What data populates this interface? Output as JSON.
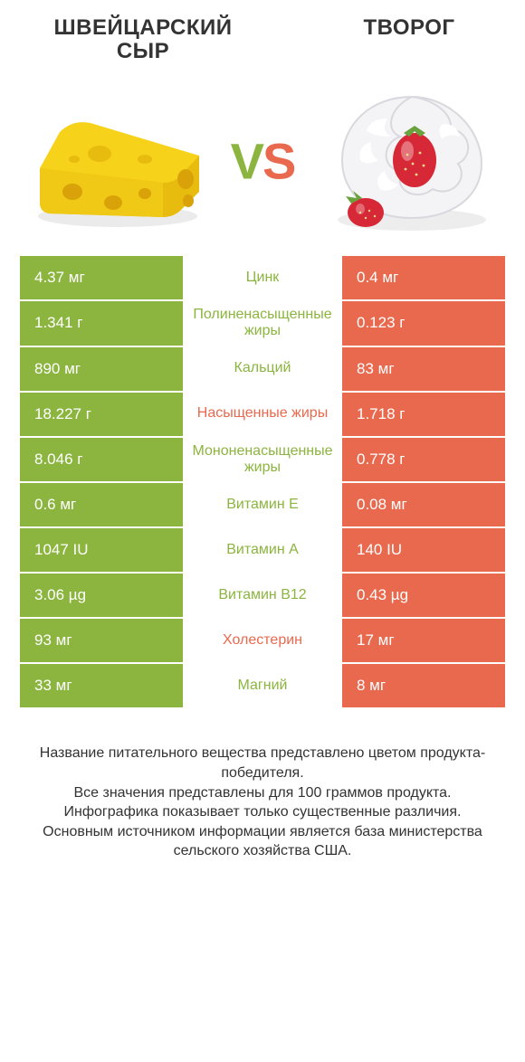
{
  "colors": {
    "left_bar": "#8bb53f",
    "right_bar": "#e9694e",
    "label_green": "#8bb53f",
    "label_red": "#e9694e",
    "cheese_body": "#f6d21a",
    "cheese_side": "#e8bb0f",
    "cheese_hole": "#d8a208",
    "bowl_fill": "#f4f4f6",
    "bowl_stroke": "#d8d8de",
    "strawberry": "#d62836",
    "strawberry_leaf": "#6aa23e"
  },
  "header": {
    "left_title": "ШВЕЙЦАРСКИЙ СЫР",
    "right_title": "ТВОРОГ",
    "vs": "VS"
  },
  "rows": [
    {
      "left": "4.37 мг",
      "label": "Цинк",
      "right": "0.4 мг",
      "label_side": "left"
    },
    {
      "left": "1.341 г",
      "label": "Полиненасыщенные жиры",
      "right": "0.123 г",
      "label_side": "left"
    },
    {
      "left": "890 мг",
      "label": "Кальций",
      "right": "83 мг",
      "label_side": "left"
    },
    {
      "left": "18.227 г",
      "label": "Насыщенные жиры",
      "right": "1.718 г",
      "label_side": "right"
    },
    {
      "left": "8.046 г",
      "label": "Мононенасыщенные жиры",
      "right": "0.778 г",
      "label_side": "left"
    },
    {
      "left": "0.6 мг",
      "label": "Витамин E",
      "right": "0.08 мг",
      "label_side": "left"
    },
    {
      "left": "1047 IU",
      "label": "Витамин A",
      "right": "140 IU",
      "label_side": "left"
    },
    {
      "left": "3.06 µg",
      "label": "Витамин B12",
      "right": "0.43 µg",
      "label_side": "left"
    },
    {
      "left": "93 мг",
      "label": "Холестерин",
      "right": "17 мг",
      "label_side": "right"
    },
    {
      "left": "33 мг",
      "label": "Магний",
      "right": "8 мг",
      "label_side": "left"
    }
  ],
  "footer": {
    "line1": "Название питательного вещества представлено цветом продукта-победителя.",
    "line2": "Все значения представлены для 100 граммов продукта.",
    "line3": "Инфографика показывает только существенные различия.",
    "line4": "Основным источником информации является база министерства сельского хозяйства США."
  }
}
